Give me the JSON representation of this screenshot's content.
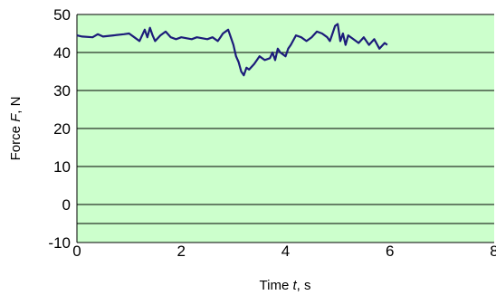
{
  "chart_data": {
    "type": "line",
    "xlabel": {
      "prefix": "Time ",
      "var": "t",
      "suffix": ", s"
    },
    "ylabel": {
      "prefix": "Force ",
      "var": "F",
      "suffix": ", N"
    },
    "xlim": [
      0,
      8
    ],
    "ylim": [
      -10,
      50
    ],
    "x_ticks": [
      "0",
      "2",
      "4",
      "6",
      "8"
    ],
    "y_ticks": [
      "-10",
      "0",
      "10",
      "20",
      "30",
      "40",
      "50"
    ],
    "grid": true,
    "plot_background": "#ccffcc",
    "gridline_color": "#000000",
    "line_color": "#1c1c7a",
    "series": [
      {
        "x": [
          0,
          0.1,
          0.3,
          0.4,
          0.5,
          0.7,
          0.9,
          1.0,
          1.1,
          1.2,
          1.3,
          1.35,
          1.4,
          1.45,
          1.5,
          1.6,
          1.7,
          1.8,
          1.9,
          2.0,
          2.2,
          2.3,
          2.5,
          2.6,
          2.7,
          2.75,
          2.8,
          2.9,
          3.0,
          3.05,
          3.1,
          3.15,
          3.2,
          3.25,
          3.3,
          3.4,
          3.5,
          3.6,
          3.7,
          3.75,
          3.8,
          3.85,
          3.9,
          4.0,
          4.05,
          4.1,
          4.2,
          4.3,
          4.4,
          4.5,
          4.6,
          4.7,
          4.8,
          4.85,
          4.9,
          4.95,
          5.0,
          5.05,
          5.1,
          5.15,
          5.2,
          5.3,
          5.4,
          5.5,
          5.6,
          5.7,
          5.8,
          5.9,
          5.95
        ],
        "y": [
          44.5,
          44.2,
          44.0,
          44.8,
          44.2,
          44.5,
          44.8,
          45.0,
          44.0,
          43.0,
          46.0,
          44.0,
          46.5,
          44.5,
          43.0,
          44.5,
          45.5,
          44.0,
          43.5,
          44.0,
          43.5,
          44.0,
          43.5,
          44.0,
          43.0,
          44.0,
          45.0,
          46.0,
          42.0,
          39.0,
          37.5,
          35.0,
          34.0,
          36.0,
          35.5,
          37.0,
          39.0,
          38.0,
          38.5,
          40.0,
          38.0,
          41.0,
          40.0,
          39.0,
          41.0,
          42.0,
          44.5,
          44.0,
          43.0,
          44.0,
          45.5,
          45.0,
          44.0,
          43.0,
          45.0,
          47.0,
          47.5,
          43.0,
          45.0,
          42.0,
          44.5,
          43.5,
          42.5,
          44.0,
          42.0,
          43.5,
          41.0,
          42.5,
          42.0
        ]
      }
    ]
  }
}
